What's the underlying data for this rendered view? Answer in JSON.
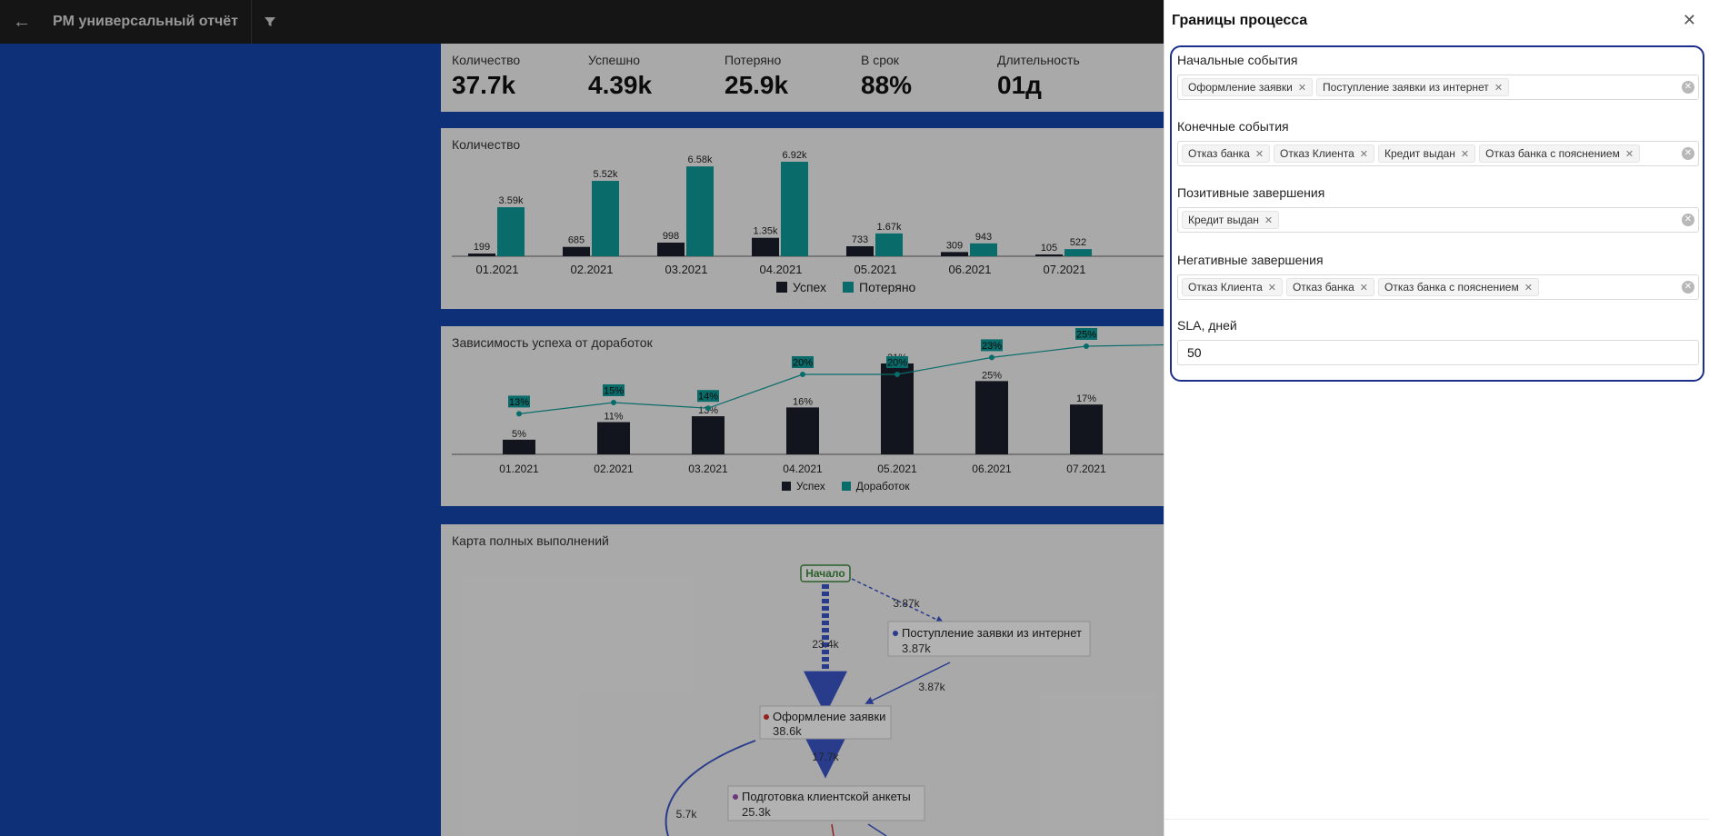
{
  "topbar": {
    "title": "PM универсальный отчёт"
  },
  "kpis": [
    {
      "label": "Количество",
      "value": "37.7k"
    },
    {
      "label": "Успешно",
      "value": "4.39k"
    },
    {
      "label": "Потеряно",
      "value": "25.9k"
    },
    {
      "label": "В срок",
      "value": "88%"
    },
    {
      "label": "Длительность",
      "value": "01д"
    }
  ],
  "chart1": {
    "title": "Количество",
    "legend": [
      "Успех",
      "Потеряно"
    ]
  },
  "chart2": {
    "title": "Зависимость успеха от доработок",
    "legend": [
      "Успех",
      "Доработок"
    ]
  },
  "chart3": {
    "title": "Карта полных выполнений"
  },
  "chart_data": [
    {
      "type": "bar",
      "title": "Количество",
      "categories": [
        "01.2021",
        "02.2021",
        "03.2021",
        "04.2021",
        "05.2021",
        "06.2021",
        "07.2021"
      ],
      "series": [
        {
          "name": "Успех",
          "values": [
            199,
            685,
            998,
            1350,
            733,
            309,
            105
          ],
          "labels": [
            "199",
            "685",
            "998",
            "1.35k",
            "733",
            "309",
            "105"
          ],
          "color": "#1a1f2b"
        },
        {
          "name": "Потеряно",
          "values": [
            3590,
            5520,
            6580,
            6920,
            1670,
            943,
            522
          ],
          "labels": [
            "3.59k",
            "5.52k",
            "6.58k",
            "6.92k",
            "1.67k",
            "943",
            "522"
          ],
          "color": "#0e9b98"
        }
      ]
    },
    {
      "type": "bar",
      "title": "Зависимость успеха от доработок",
      "categories": [
        "01.2021",
        "02.2021",
        "03.2021",
        "04.2021",
        "05.2021",
        "06.2021",
        "07.2021"
      ],
      "series": [
        {
          "name": "Успех",
          "values": [
            5,
            11,
            13,
            16,
            31,
            25,
            17
          ],
          "labels": [
            "5%",
            "11%",
            "13%",
            "16%",
            "31%",
            "25%",
            "17%"
          ],
          "color": "#1a1f2b"
        },
        {
          "name": "Доработок",
          "values": [
            13,
            15,
            14,
            20,
            20,
            23,
            25
          ],
          "labels": [
            "13%",
            "15%",
            "14%",
            "20%",
            "20%",
            "23%",
            "25%"
          ],
          "color": "#0e9b98"
        }
      ]
    }
  ],
  "map": {
    "start": "Начало",
    "nodes": [
      {
        "label": "Поступление заявки из интернет",
        "count": "3.87k",
        "color": "#3b56c9"
      },
      {
        "label": "Оформление заявки",
        "count": "38.6k",
        "color": "#d23030"
      },
      {
        "label": "Подготовка клиентской анкеты",
        "count": "25.3k",
        "color": "#9a4fb0"
      }
    ],
    "edges": [
      "3.87k",
      "23.4k",
      "3.87k",
      "17.7k",
      "5.7k"
    ]
  },
  "panel": {
    "title": "Границы процесса",
    "start_label": "Начальные события",
    "start_tags": [
      "Оформление заявки",
      "Поступление заявки из интернет"
    ],
    "end_label": "Конечные события",
    "end_tags": [
      "Отказ банка",
      "Отказ Клиента",
      "Кредит выдан",
      "Отказ банка с пояснением"
    ],
    "pos_label": "Позитивные завершения",
    "pos_tags": [
      "Кредит выдан"
    ],
    "neg_label": "Негативные завершения",
    "neg_tags": [
      "Отказ Клиента",
      "Отказ банка",
      "Отказ банка с пояснением"
    ],
    "sla_label": "SLA, дней",
    "sla_value": "50"
  }
}
